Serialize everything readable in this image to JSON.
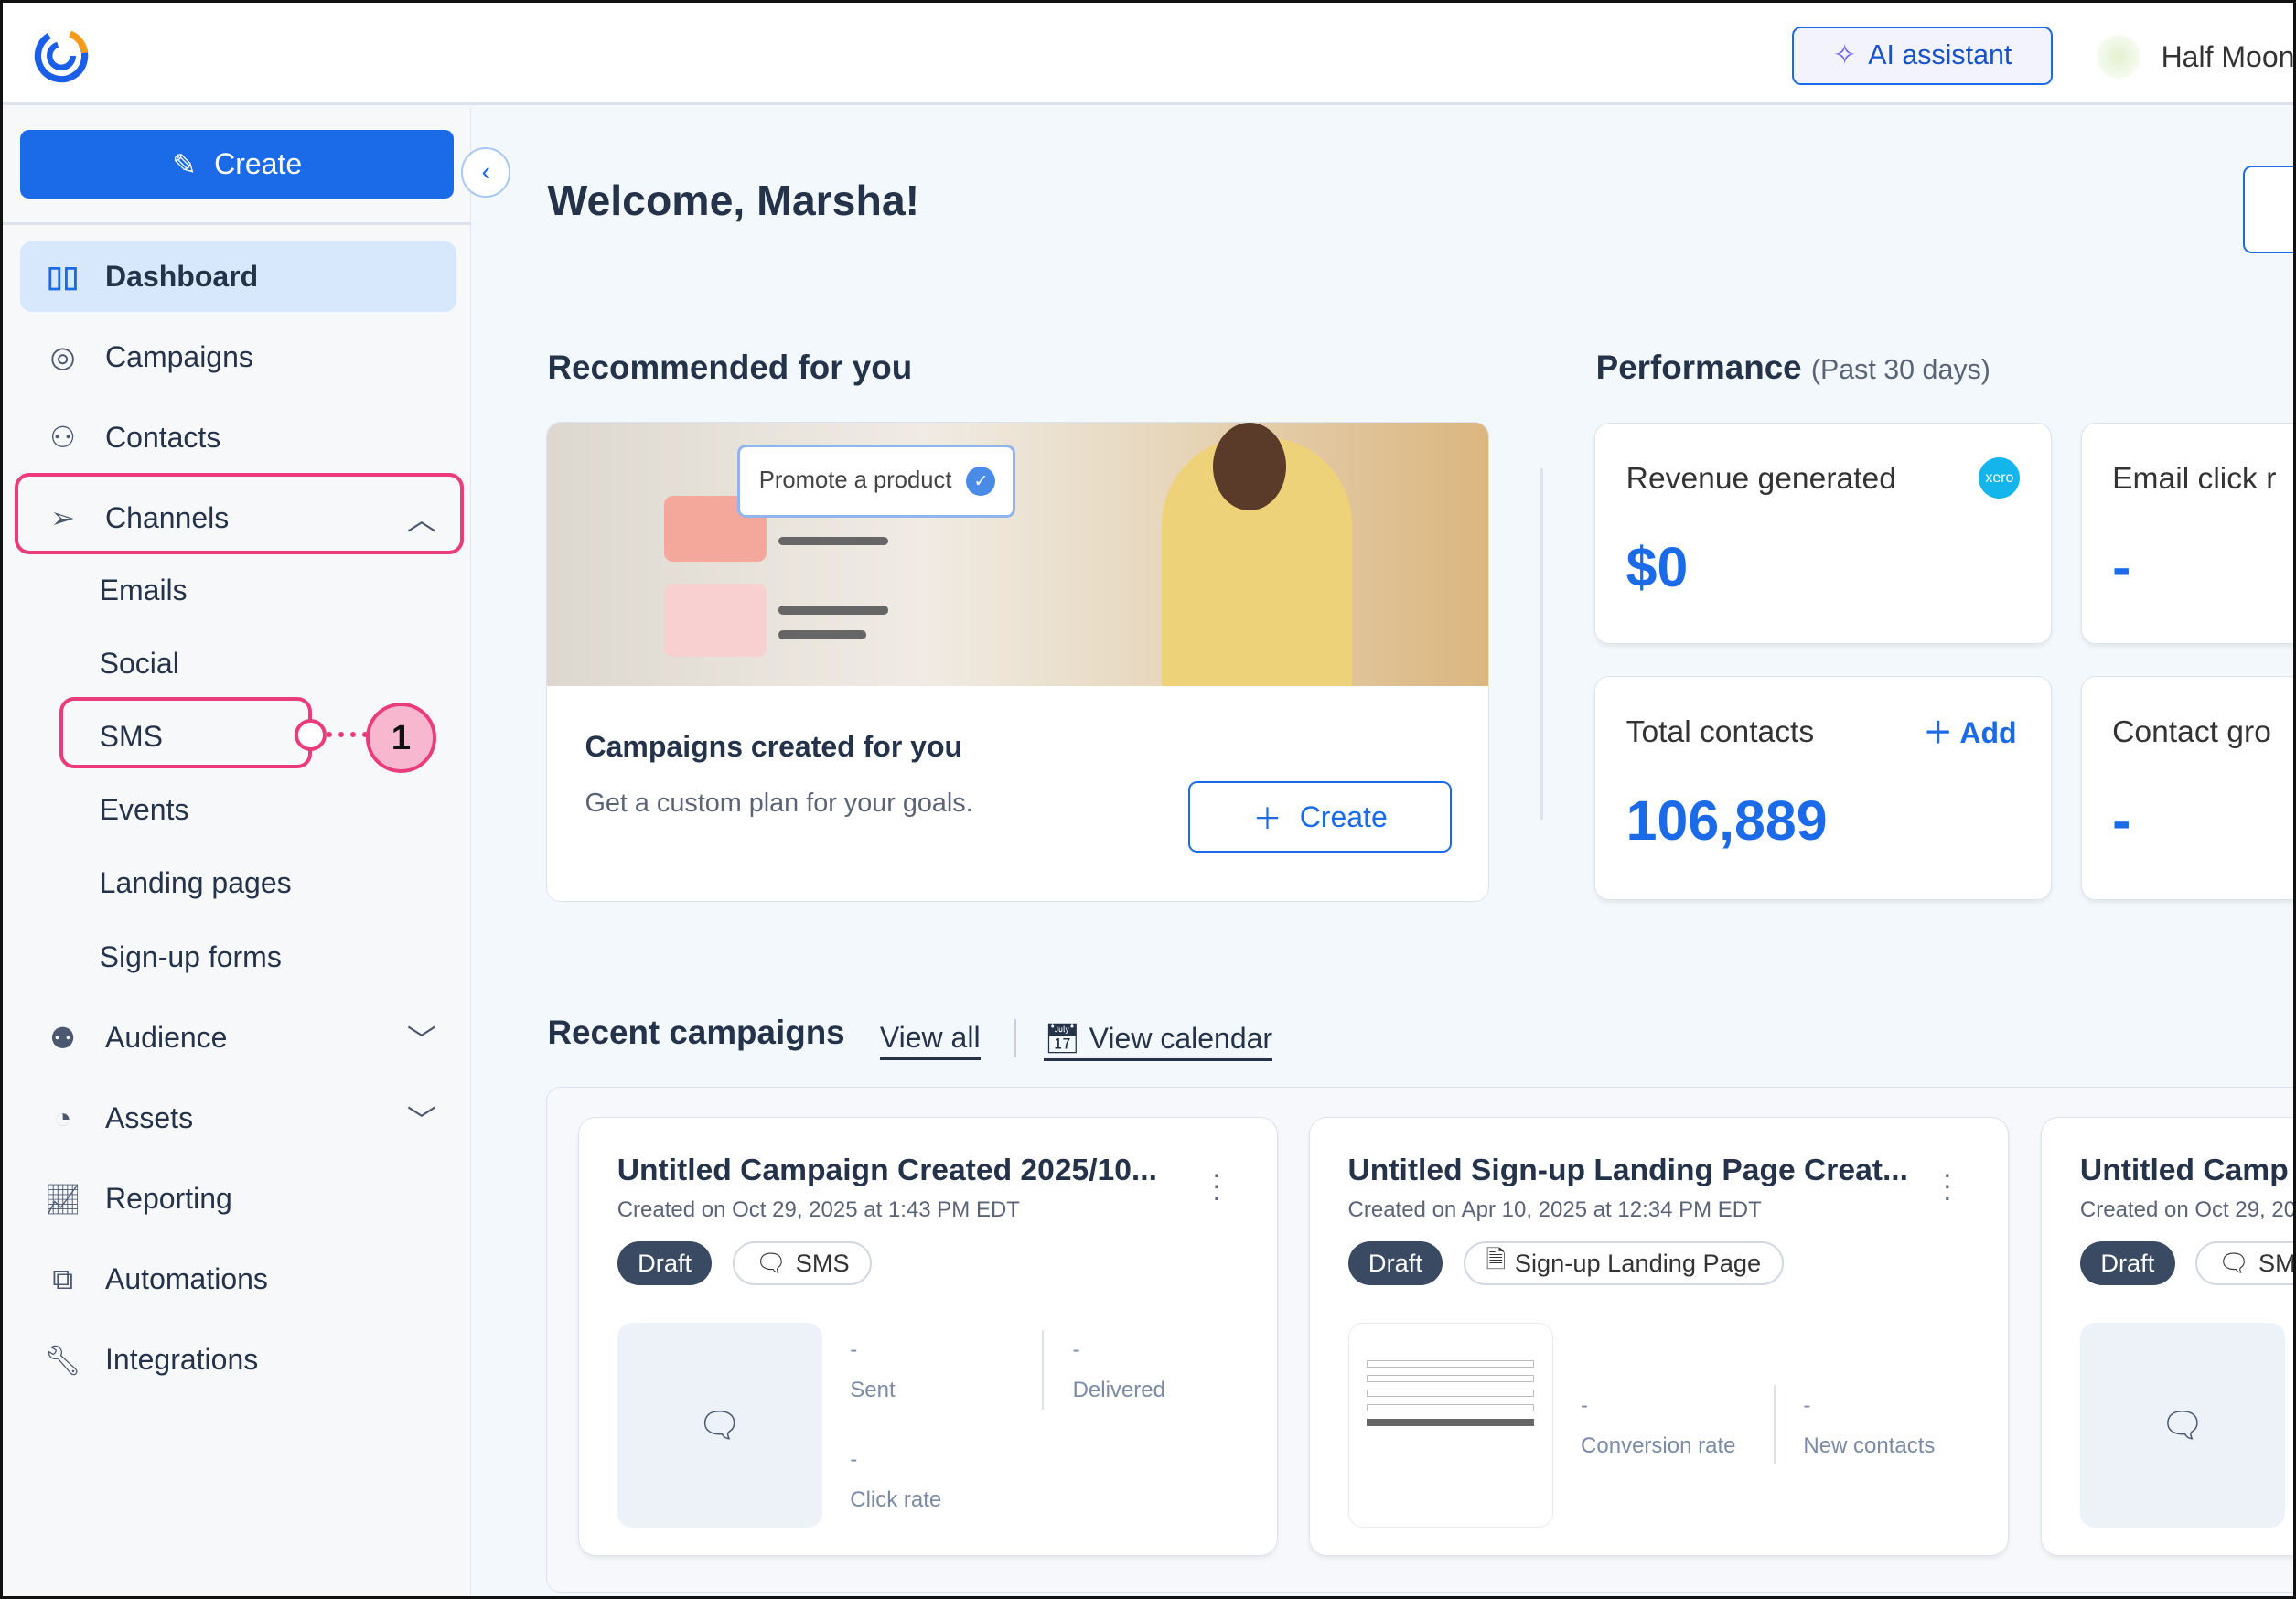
{
  "header": {
    "ai_label": "AI assistant",
    "account": "Half Moon"
  },
  "sidebar": {
    "create": "Create",
    "items": [
      {
        "label": "Dashboard",
        "icon": "dashboard-icon"
      },
      {
        "label": "Campaigns",
        "icon": "target-icon"
      },
      {
        "label": "Contacts",
        "icon": "person-icon"
      },
      {
        "label": "Channels",
        "icon": "paper-plane-icon"
      },
      {
        "label": "Audience",
        "icon": "people-icon"
      },
      {
        "label": "Assets",
        "icon": "palette-icon"
      },
      {
        "label": "Reporting",
        "icon": "chart-icon"
      },
      {
        "label": "Automations",
        "icon": "flow-icon"
      },
      {
        "label": "Integrations",
        "icon": "wrench-icon"
      }
    ],
    "channels": [
      "Emails",
      "Social",
      "SMS",
      "Events",
      "Landing pages",
      "Sign-up forms"
    ],
    "callout": "1",
    "highlight_color": "#ea3c7c"
  },
  "main": {
    "welcome": "Welcome, Marsha!",
    "recommended": {
      "title": "Recommended for you",
      "promo": "Promote a product",
      "card_title": "Campaigns created for you",
      "card_desc": "Get a custom plan for your goals.",
      "button": "Create"
    },
    "performance": {
      "title": "Performance",
      "period": "(Past 30 days)",
      "cards": [
        {
          "label": "Revenue generated",
          "value": "$0",
          "badge": "xero"
        },
        {
          "label": "Email click r",
          "value": "-"
        },
        {
          "label": "Total contacts",
          "value": "106,889",
          "action": "Add"
        },
        {
          "label": "Contact gro",
          "value": "-"
        }
      ]
    },
    "recent": {
      "title": "Recent campaigns",
      "view_all": "View all",
      "view_calendar": "View calendar",
      "cards": [
        {
          "title": "Untitled Campaign Created 2025/10...",
          "date": "Created on Oct 29, 2025 at 1:43 PM EDT",
          "status": "Draft",
          "type": "SMS",
          "metrics": [
            {
              "v": "-",
              "l": "Sent"
            },
            {
              "v": "-",
              "l": "Delivered"
            },
            {
              "v": "-",
              "l": "Click rate"
            }
          ]
        },
        {
          "title": "Untitled Sign-up Landing Page Creat...",
          "date": "Created on Apr 10, 2025 at 12:34 PM EDT",
          "status": "Draft",
          "type": "Sign-up Landing Page",
          "metrics": [
            {
              "v": "-",
              "l": "Conversion rate"
            },
            {
              "v": "-",
              "l": "New contacts"
            }
          ]
        },
        {
          "title": "Untitled Camp",
          "date": "Created on Oct 29, 20",
          "status": "Draft",
          "type": "SMS"
        }
      ]
    }
  },
  "colors": {
    "primary": "#1b6ae8",
    "draft": "#3b4a63"
  }
}
